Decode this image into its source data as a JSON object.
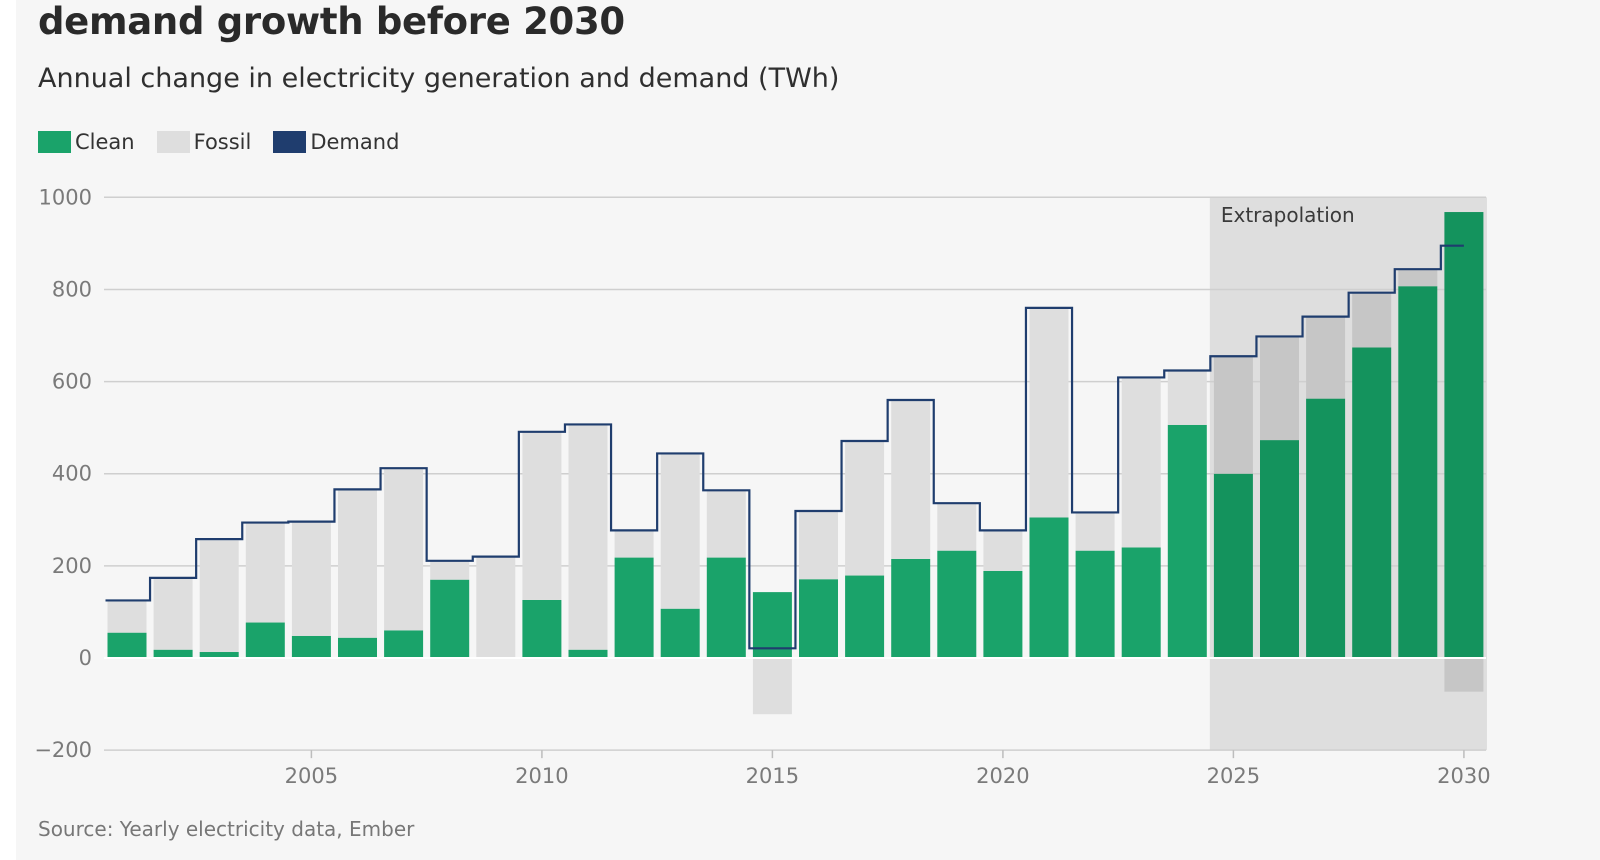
{
  "header": {
    "title": "demand growth before 2030",
    "subtitle": "Annual change in electricity generation and demand (TWh)"
  },
  "legend": [
    {
      "label": "Clean",
      "color": "#1aa36a"
    },
    {
      "label": "Fossil",
      "color": "#dedede"
    },
    {
      "label": "Demand",
      "color": "#1f3d6e"
    }
  ],
  "footer": {
    "source": "Source: Yearly electricity data, Ember"
  },
  "chart_data": {
    "type": "bar",
    "stacked": true,
    "x": [
      2001,
      2002,
      2003,
      2004,
      2005,
      2006,
      2007,
      2008,
      2009,
      2010,
      2011,
      2012,
      2013,
      2014,
      2015,
      2016,
      2017,
      2018,
      2019,
      2020,
      2021,
      2022,
      2023,
      2024,
      2025,
      2026,
      2027,
      2028,
      2029,
      2030
    ],
    "series": [
      {
        "name": "Clean",
        "color": "#1aa36a",
        "values": [
          55,
          18,
          13,
          77,
          48,
          44,
          60,
          170,
          0,
          126,
          18,
          218,
          107,
          218,
          143,
          171,
          179,
          215,
          233,
          189,
          305,
          233,
          240,
          506,
          400,
          473,
          563,
          674,
          807,
          968
        ]
      },
      {
        "name": "Fossil",
        "color": "#dedede",
        "values": [
          70,
          154,
          242,
          216,
          248,
          320,
          352,
          41,
          220,
          364,
          490,
          60,
          337,
          146,
          -122,
          148,
          292,
          345,
          103,
          88,
          455,
          82,
          369,
          119,
          255,
          225,
          178,
          118,
          35,
          -73
        ]
      },
      {
        "name": "Demand",
        "color": "#1f3d6e",
        "type": "step",
        "values": [
          125,
          174,
          258,
          294,
          296,
          366,
          412,
          211,
          220,
          491,
          507,
          277,
          444,
          364,
          21,
          319,
          471,
          560,
          336,
          277,
          760,
          316,
          609,
          624,
          655,
          698,
          741,
          793,
          844,
          895
        ]
      }
    ],
    "ylim": [
      -200,
      1000
    ],
    "yticks": [
      -200,
      0,
      200,
      400,
      600,
      800,
      1000
    ],
    "xticks": [
      2005,
      2010,
      2015,
      2020,
      2025,
      2030
    ],
    "grid": true,
    "legend_position": "top-left",
    "extrapolation": {
      "label": "Extrapolation",
      "from_year": 2025,
      "to_year": 2030
    }
  }
}
